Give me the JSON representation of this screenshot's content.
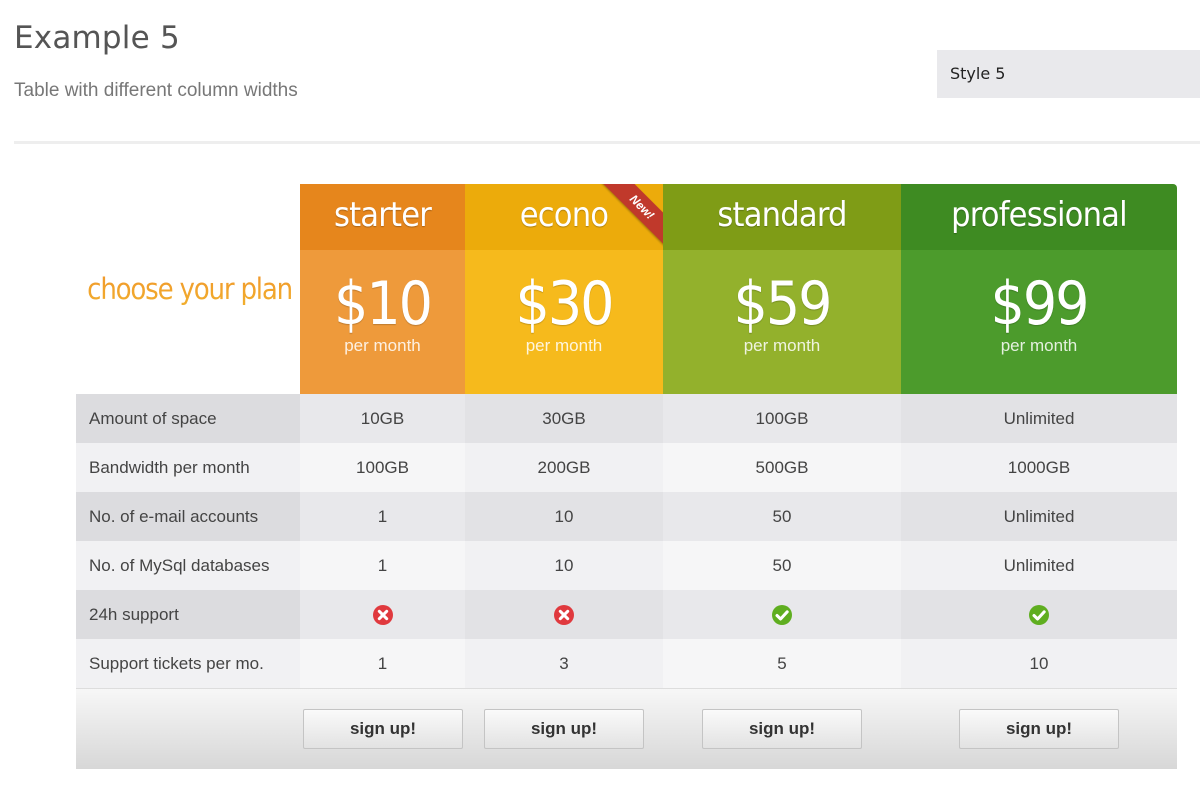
{
  "header": {
    "title": "Example 5",
    "subtitle": "Table with different column widths",
    "style_select_value": "Style 5"
  },
  "pricing": {
    "tagline": "choose your plan",
    "plans": [
      {
        "name": "starter",
        "price": "$10",
        "period": "per month",
        "colors": {
          "head": "#e6861c",
          "body": "#ee9a3b",
          "cell_a": "#e8e8eb",
          "cell_b": "#f6f6f7"
        }
      },
      {
        "name": "econo",
        "price": "$30",
        "period": "per month",
        "ribbon": "New!",
        "colors": {
          "head": "#ecab0b",
          "body": "#f6ba1c",
          "cell_a": "#e2e2e5",
          "cell_b": "#f1f1f3"
        }
      },
      {
        "name": "standard",
        "price": "$59",
        "period": "per month",
        "colors": {
          "head": "#7f9c16",
          "body": "#93b12c",
          "cell_a": "#e8e8eb",
          "cell_b": "#f6f6f7"
        }
      },
      {
        "name": "professional",
        "price": "$99",
        "period": "per month",
        "colors": {
          "head": "#3e8b22",
          "body": "#4c9b2c",
          "cell_a": "#e2e2e5",
          "cell_b": "#f1f1f3"
        }
      }
    ],
    "rows": [
      {
        "label": "Amount of space",
        "values": [
          "10GB",
          "30GB",
          "100GB",
          "Unlimited"
        ]
      },
      {
        "label": "Bandwidth per month",
        "values": [
          "100GB",
          "200GB",
          "500GB",
          "1000GB"
        ]
      },
      {
        "label": "No. of e-mail accounts",
        "values": [
          "1",
          "10",
          "50",
          "Unlimited"
        ]
      },
      {
        "label": "No. of MySql databases",
        "values": [
          "1",
          "10",
          "50",
          "Unlimited"
        ]
      },
      {
        "label": "24h support",
        "icons": [
          "cross-icon",
          "cross-icon",
          "check-icon",
          "check-icon"
        ]
      },
      {
        "label": "Support tickets per mo.",
        "values": [
          "1",
          "3",
          "5",
          "10"
        ]
      }
    ],
    "signup_label": "sign up!",
    "colors": {
      "label_a": "#dcdcdf",
      "label_b": "#f1f1f3",
      "cross": "#e0393e",
      "check": "#5fae20"
    }
  }
}
